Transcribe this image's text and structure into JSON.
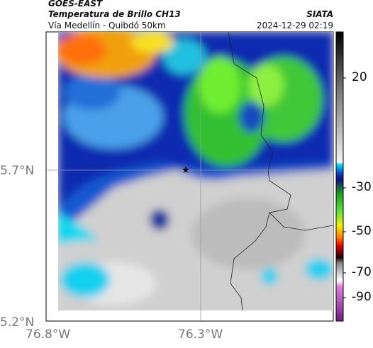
{
  "header": {
    "source": "GOES-EAST",
    "title": "Temperatura de Brillo CH13",
    "route": "Vía Medellín - Quibdó 50km",
    "brand": "SIATA",
    "timestamp": "2024-12-29 02:19"
  },
  "axes": {
    "lat_labels": [
      "5.7°N",
      "5.2°N"
    ],
    "lon_labels": [
      "76.8°W",
      "76.3°W"
    ]
  },
  "colorbar": {
    "labels": [
      "20",
      "-30",
      "-50",
      "-70",
      "-90"
    ]
  }
}
